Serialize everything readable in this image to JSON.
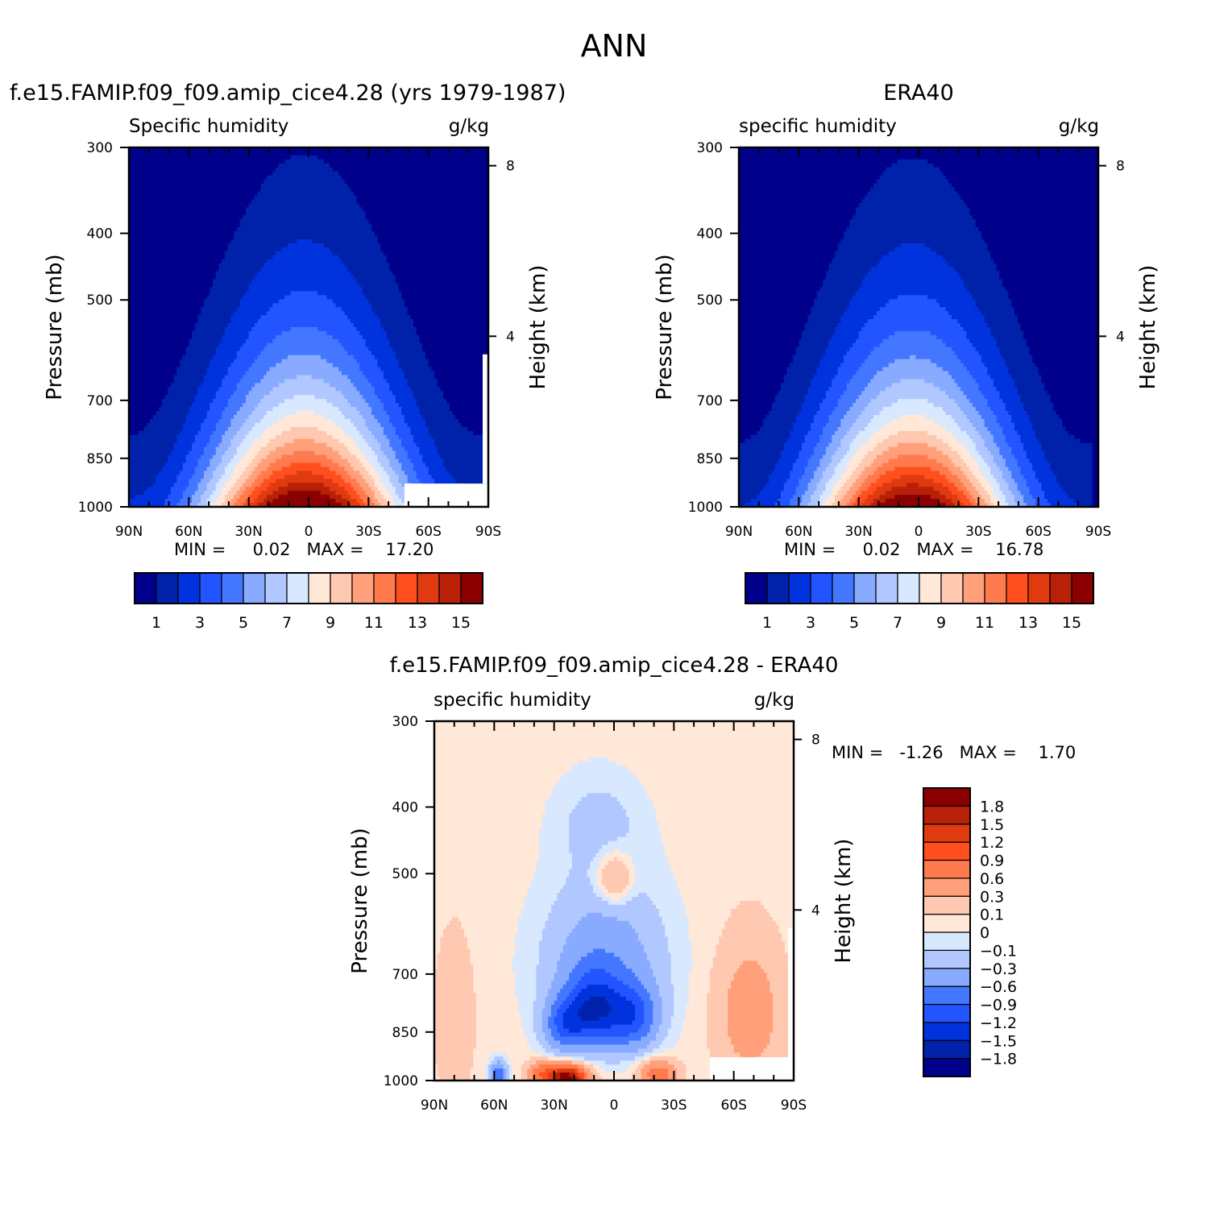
{
  "figure_title": "ANN",
  "colors": {
    "model_levels": [
      "#00008b",
      "#0022aa",
      "#0033dd",
      "#2255ff",
      "#4477ff",
      "#88aaff",
      "#b0c8ff",
      "#d8e8ff",
      "#ffe8d8",
      "#ffc8b0",
      "#ffa07a",
      "#ff7a4d",
      "#ff4f1f",
      "#e03a10",
      "#b82008",
      "#8b0000"
    ],
    "diff_levels": [
      "#00008b",
      "#0022aa",
      "#0033dd",
      "#2255ff",
      "#4477ff",
      "#88aaff",
      "#b0c8ff",
      "#d8e8ff",
      "#ffe8d8",
      "#ffc8b0",
      "#ffa07a",
      "#ff7a4d",
      "#ff4f1f",
      "#e03a10",
      "#b82008",
      "#8b0000"
    ]
  },
  "chart_data": [
    {
      "id": "model",
      "type": "heatmap",
      "title": "f.e15.FAMIP.f09_f09.amip_cice4.28 (yrs 1979-1987)",
      "left_label": "Specific humidity",
      "right_label": "g/kg",
      "ylabel": "Pressure (mb)",
      "ylabel_right": "Height (km)",
      "x_ticks": [
        "90N",
        "60N",
        "30N",
        "0",
        "30S",
        "60S",
        "90S"
      ],
      "y_ticks": [
        "300",
        "400",
        "500",
        "700",
        "850",
        "1000"
      ],
      "y_ticks_right": [
        "8",
        "4"
      ],
      "x_range": [
        90,
        -90
      ],
      "y_range": [
        1000,
        300
      ],
      "log_y": true,
      "stats": "MIN =     0.02   MAX =    17.20",
      "min": 0.02,
      "max": 17.2,
      "colorbar_labels": [
        "1",
        "3",
        "5",
        "7",
        "9",
        "11",
        "13",
        "15"
      ],
      "levels": [
        1,
        2,
        3,
        4,
        5,
        6,
        7,
        8,
        9,
        10,
        11,
        12,
        13,
        14,
        15
      ],
      "field": {
        "peak_lat": 2,
        "peak_value": 17.2,
        "missing_south_of_lat": -48,
        "missing_below_p": 925
      }
    },
    {
      "id": "obs",
      "type": "heatmap",
      "title": "ERA40",
      "left_label": "specific humidity",
      "right_label": "g/kg",
      "ylabel": "Pressure (mb)",
      "ylabel_right": "Height (km)",
      "x_ticks": [
        "90N",
        "60N",
        "30N",
        "0",
        "30S",
        "60S",
        "90S"
      ],
      "y_ticks": [
        "300",
        "400",
        "500",
        "700",
        "850",
        "1000"
      ],
      "y_ticks_right": [
        "8",
        "4"
      ],
      "x_range": [
        90,
        -90
      ],
      "y_range": [
        1000,
        300
      ],
      "log_y": true,
      "stats": "MIN =     0.02   MAX =    16.78",
      "min": 0.02,
      "max": 16.78,
      "colorbar_labels": [
        "1",
        "3",
        "5",
        "7",
        "9",
        "11",
        "13",
        "15"
      ],
      "levels": [
        1,
        2,
        3,
        4,
        5,
        6,
        7,
        8,
        9,
        10,
        11,
        12,
        13,
        14,
        15
      ],
      "field": {
        "peak_lat": 3,
        "peak_value": 16.78
      }
    },
    {
      "id": "diff",
      "type": "heatmap",
      "title": "f.e15.FAMIP.f09_f09.amip_cice4.28 - ERA40",
      "left_label": "specific humidity",
      "right_label": "g/kg",
      "ylabel": "Pressure (mb)",
      "ylabel_right": "Height (km)",
      "x_ticks": [
        "90N",
        "60N",
        "30N",
        "0",
        "30S",
        "60S",
        "90S"
      ],
      "y_ticks": [
        "300",
        "400",
        "500",
        "700",
        "850",
        "1000"
      ],
      "y_ticks_right": [
        "8",
        "4"
      ],
      "x_range": [
        90,
        -90
      ],
      "y_range": [
        1000,
        300
      ],
      "log_y": true,
      "stats": "MIN =   -1.26   MAX =    1.70",
      "min": -1.26,
      "max": 1.7,
      "colorbar_labels": [
        "1.8",
        "1.5",
        "1.2",
        "0.9",
        "0.6",
        "0.3",
        "0.1",
        "0",
        "-0.1",
        "-0.3",
        "-0.6",
        "-0.9",
        "-1.2",
        "-1.5",
        "-1.8"
      ],
      "levels": [
        -1.8,
        -1.5,
        -1.2,
        -0.9,
        -0.6,
        -0.3,
        -0.1,
        0,
        0.1,
        0.3,
        0.6,
        0.9,
        1.2,
        1.5,
        1.8
      ],
      "features": [
        {
          "lat": 10,
          "p": 790,
          "value": -1.26
        },
        {
          "lat": -10,
          "p": 810,
          "value": -0.95
        },
        {
          "lat": 25,
          "p": 830,
          "value": -0.95
        },
        {
          "lat": 24,
          "p": 990,
          "value": 1.7
        },
        {
          "lat": -22,
          "p": 980,
          "value": 0.8
        },
        {
          "lat": 0,
          "p": 510,
          "value": 0.45
        }
      ],
      "field": {
        "missing_south_of_lat": -48,
        "missing_below_p": 925
      }
    }
  ]
}
